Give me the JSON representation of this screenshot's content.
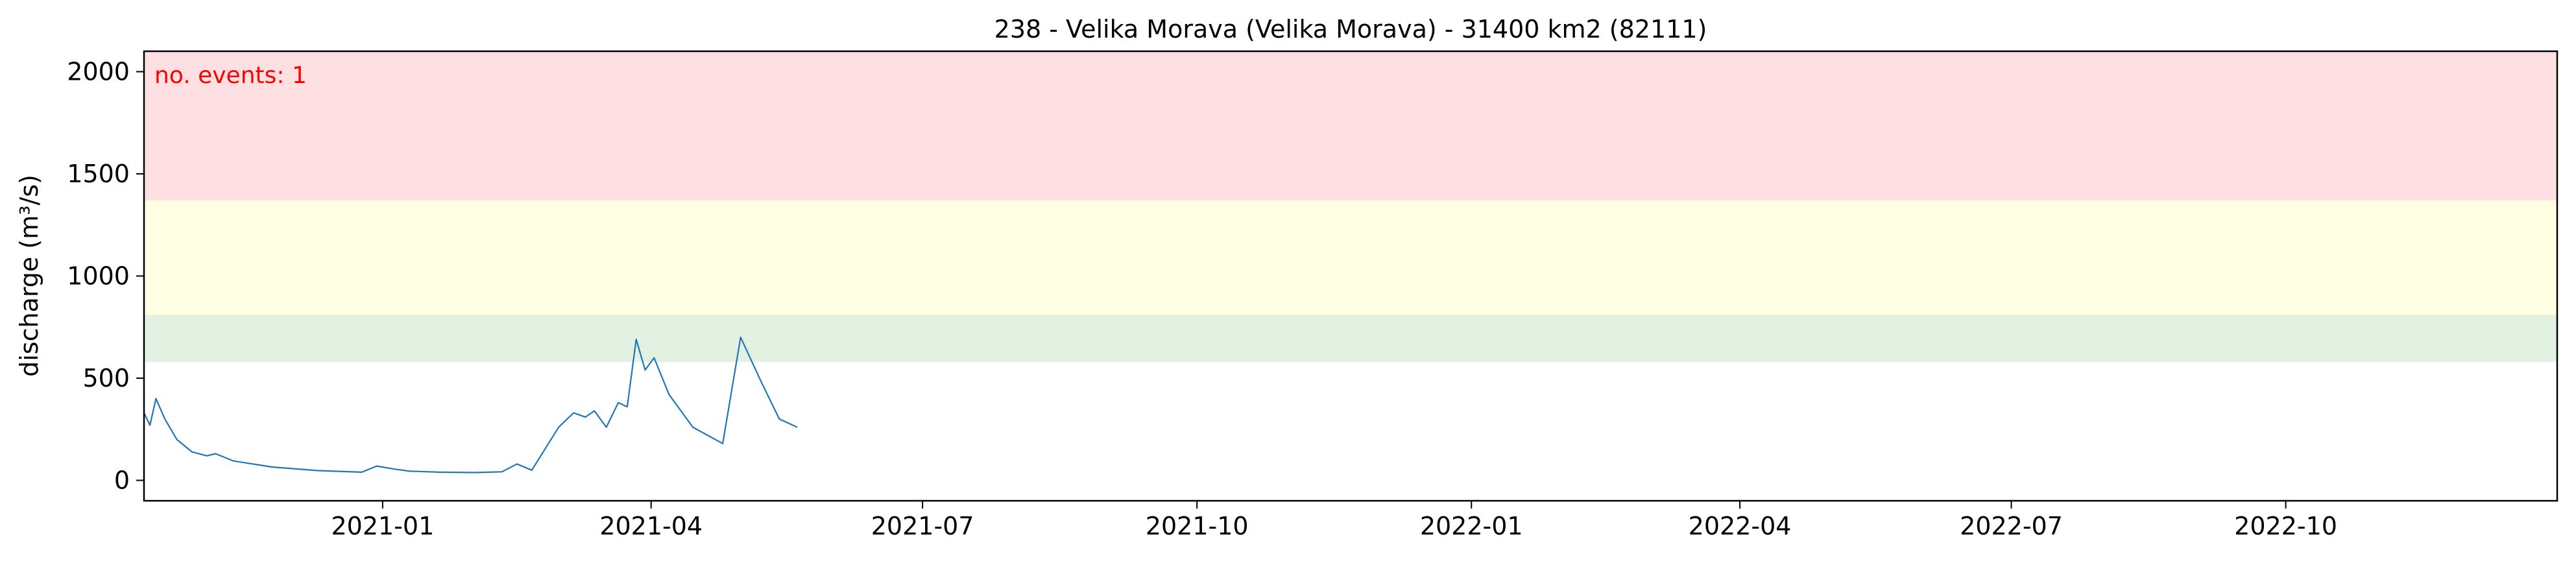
{
  "chart_data": {
    "type": "line",
    "title": "238 - Velika Morava (Velika Morava) - 31400 km2 (82111)",
    "xlabel": "",
    "ylabel": "discharge (m³/s)",
    "xlim": [
      "2020-10-13",
      "2022-12-31"
    ],
    "ylim": [
      -100,
      2100
    ],
    "x_ticks": [
      "2021-01",
      "2021-04",
      "2021-07",
      "2021-10",
      "2022-01",
      "2022-04",
      "2022-07",
      "2022-10"
    ],
    "y_ticks": [
      0,
      500,
      1000,
      1500,
      2000
    ],
    "grid": false,
    "threshold_bands": [
      {
        "from": 580,
        "to": 810,
        "color": "#e3f1e2"
      },
      {
        "from": 810,
        "to": 1370,
        "color": "#fefee3"
      },
      {
        "from": 1370,
        "to": 2100,
        "color": "#fee0e2"
      }
    ],
    "annotation": {
      "text": "no. events: 1",
      "color": "#ff0000"
    },
    "series": [
      {
        "color": "#1f77b4",
        "points": [
          [
            "2020-10-13",
            330
          ],
          [
            "2020-10-15",
            270
          ],
          [
            "2020-10-17",
            400
          ],
          [
            "2020-10-20",
            300
          ],
          [
            "2020-10-24",
            200
          ],
          [
            "2020-10-29",
            140
          ],
          [
            "2020-11-03",
            120
          ],
          [
            "2020-11-06",
            130
          ],
          [
            "2020-11-12",
            95
          ],
          [
            "2020-11-25",
            65
          ],
          [
            "2020-12-10",
            48
          ],
          [
            "2020-12-25",
            40
          ],
          [
            "2020-12-30",
            70
          ],
          [
            "2021-01-05",
            55
          ],
          [
            "2021-01-10",
            45
          ],
          [
            "2021-01-20",
            40
          ],
          [
            "2021-02-01",
            38
          ],
          [
            "2021-02-10",
            42
          ],
          [
            "2021-02-15",
            80
          ],
          [
            "2021-02-20",
            50
          ],
          [
            "2021-03-01",
            260
          ],
          [
            "2021-03-06",
            330
          ],
          [
            "2021-03-10",
            310
          ],
          [
            "2021-03-13",
            340
          ],
          [
            "2021-03-17",
            260
          ],
          [
            "2021-03-21",
            380
          ],
          [
            "2021-03-24",
            360
          ],
          [
            "2021-03-27",
            690
          ],
          [
            "2021-03-30",
            540
          ],
          [
            "2021-04-02",
            600
          ],
          [
            "2021-04-07",
            420
          ],
          [
            "2021-04-15",
            260
          ],
          [
            "2021-04-25",
            180
          ],
          [
            "2021-05-01",
            700
          ],
          [
            "2021-05-08",
            480
          ],
          [
            "2021-05-14",
            300
          ],
          [
            "2021-05-20",
            260
          ]
        ]
      }
    ]
  }
}
